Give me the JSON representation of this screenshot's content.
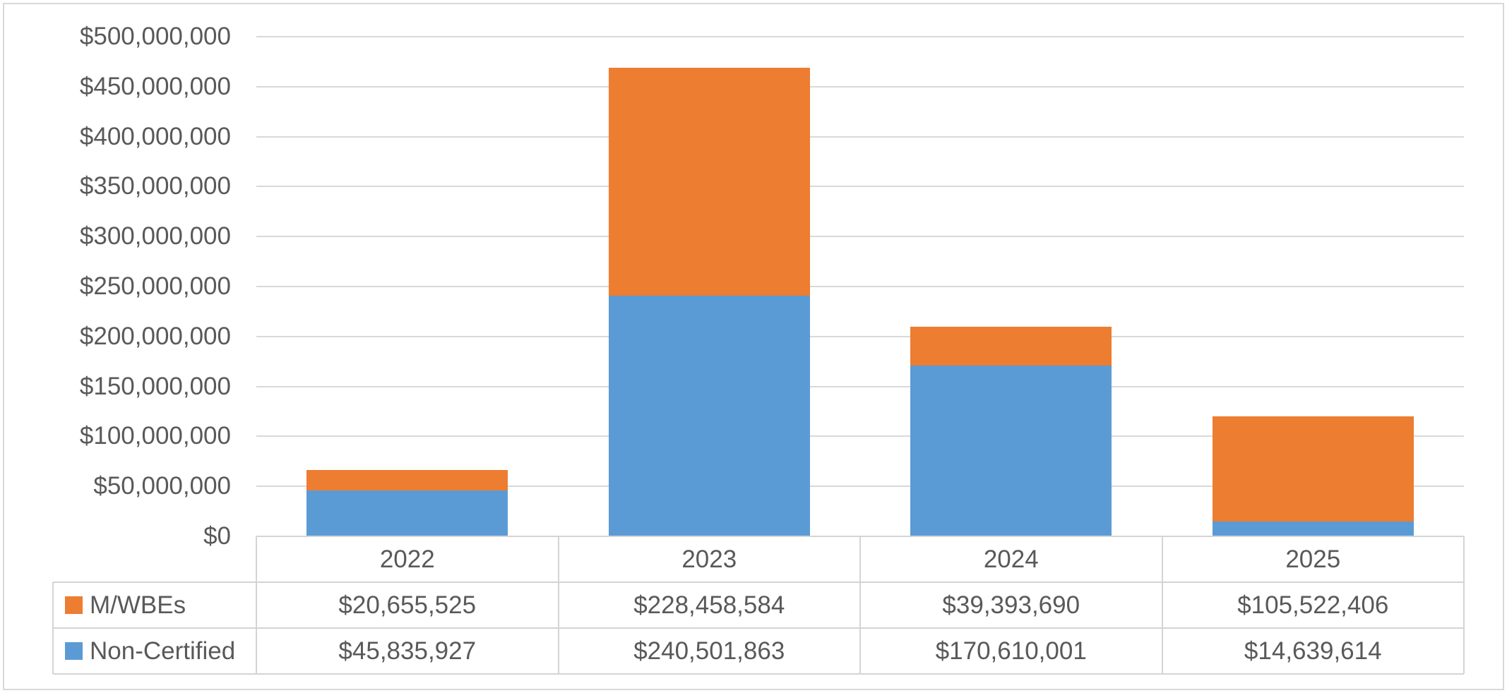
{
  "chart_data": {
    "type": "bar",
    "stacked": true,
    "title": "",
    "xlabel": "",
    "ylabel": "",
    "categories": [
      "2022",
      "2023",
      "2024",
      "2025"
    ],
    "series": [
      {
        "name": "M/WBEs",
        "color": "#ED7D31",
        "values": [
          20655525,
          228458584,
          39393690,
          105522406
        ],
        "labels": [
          "$20,655,525",
          "$228,458,584",
          "$39,393,690",
          "$105,522,406"
        ]
      },
      {
        "name": "Non-Certified",
        "color": "#5B9BD5",
        "values": [
          45835927,
          240501863,
          170610001,
          14639614
        ],
        "labels": [
          "$45,835,927",
          "$240,501,863",
          "$170,610,001",
          "$14,639,614"
        ]
      }
    ],
    "stack_order_bottom_to_top": [
      "Non-Certified",
      "M/WBEs"
    ],
    "ylim": [
      0,
      500000000
    ],
    "ytick_step": 50000000,
    "ytick_labels": [
      "$0",
      "$50,000,000",
      "$100,000,000",
      "$150,000,000",
      "$200,000,000",
      "$250,000,000",
      "$300,000,000",
      "$350,000,000",
      "$400,000,000",
      "$450,000,000",
      "$500,000,000"
    ],
    "grid": true,
    "legend_position": "data-table-left"
  },
  "colors": {
    "mwbe_orange": "#ED7D31",
    "noncert_blue": "#5B9BD5",
    "gridline": "#d9d9d9",
    "table_border": "#d4d4d4",
    "text": "#595959",
    "background": "#ffffff"
  }
}
